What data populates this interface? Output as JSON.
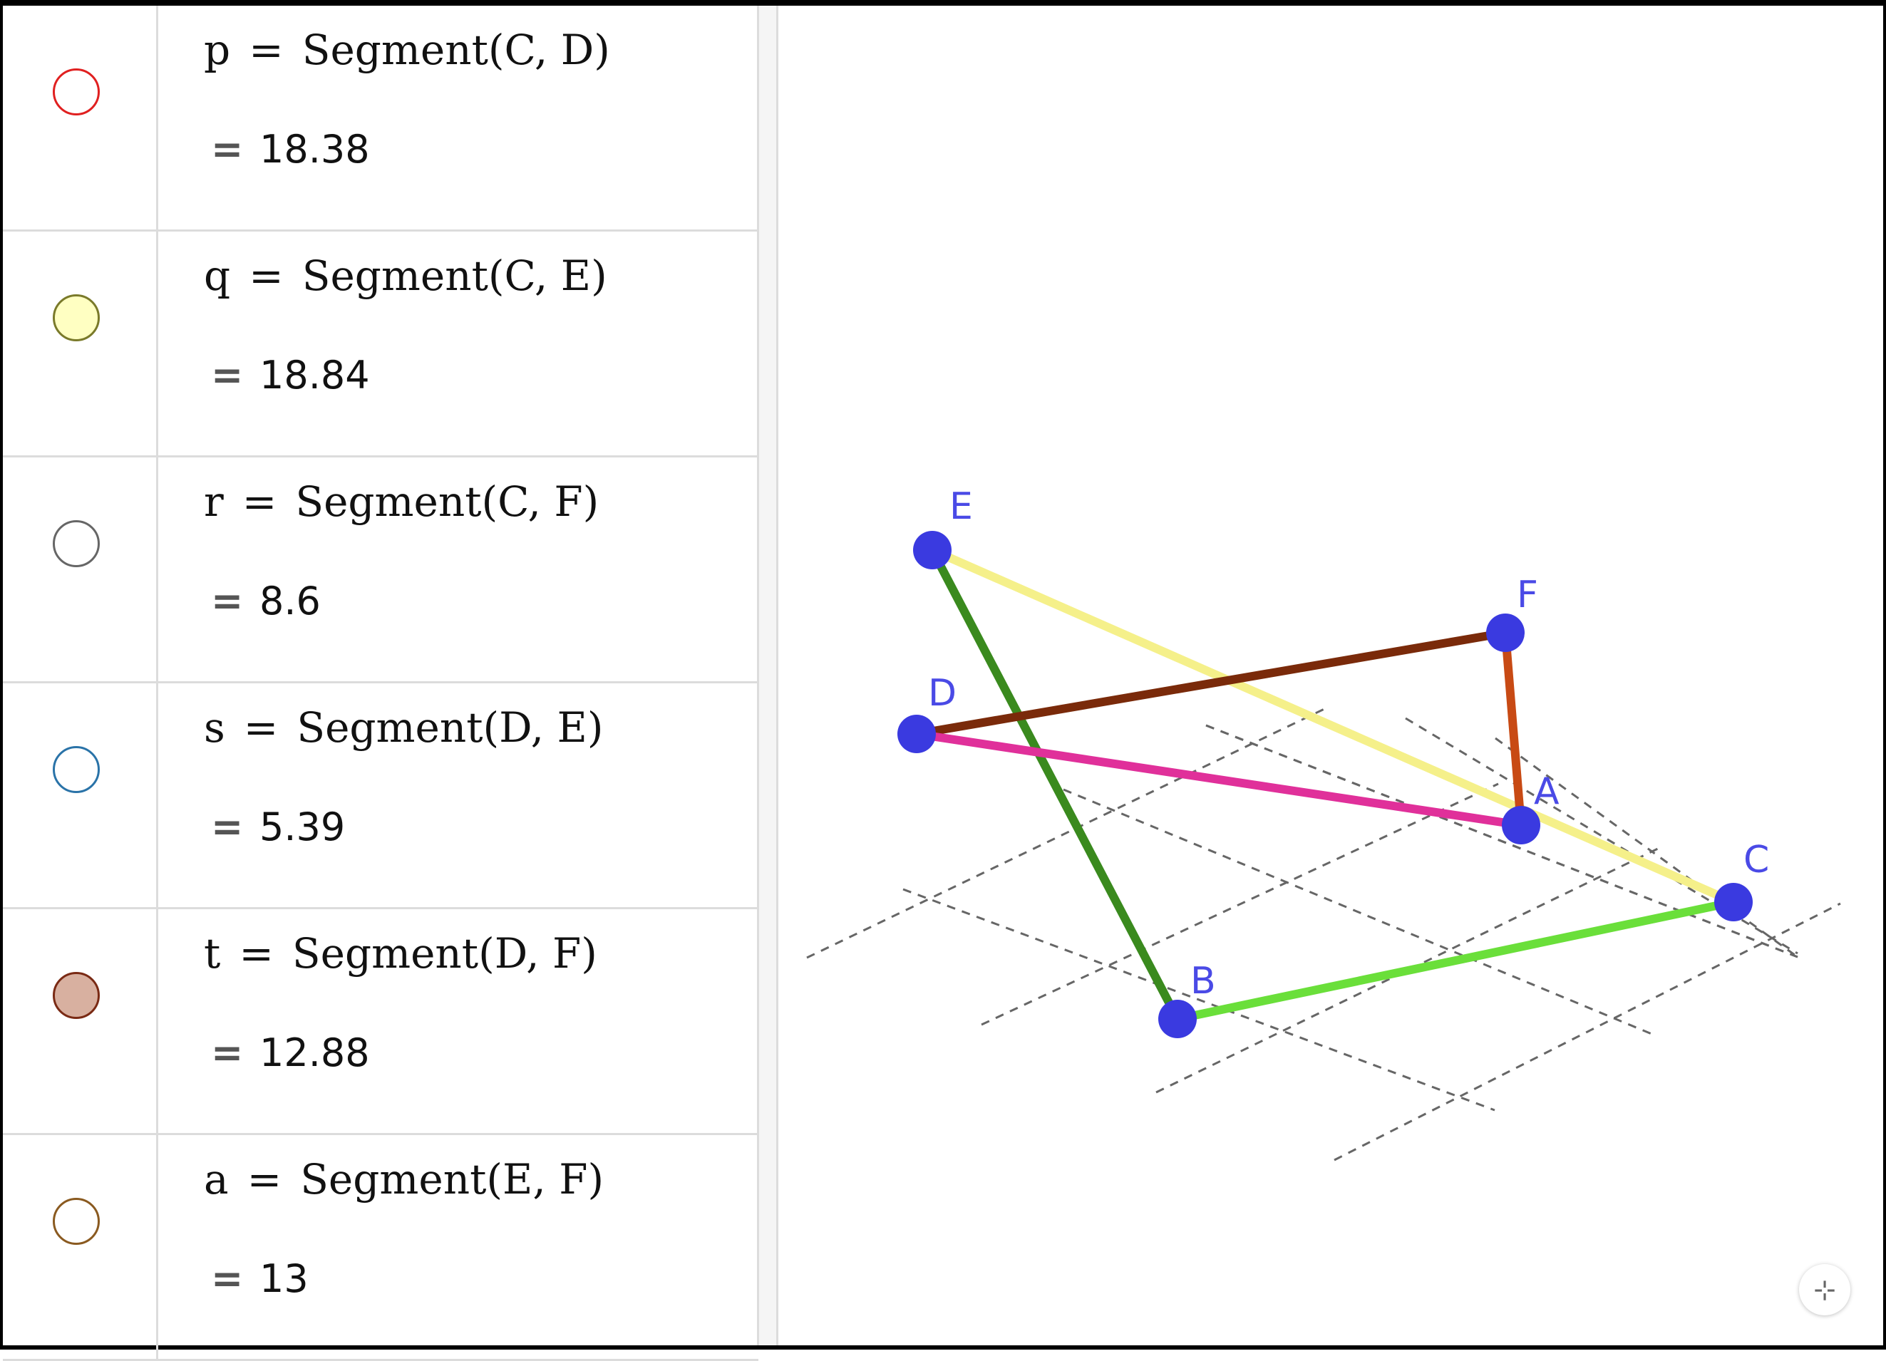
{
  "algebra": {
    "rows": [
      {
        "name": "p",
        "definition": "Segment(C, D)",
        "value": "18.38",
        "marble_color": "#e02020",
        "marble_fill": "#ffffff"
      },
      {
        "name": "q",
        "definition": "Segment(C, E)",
        "value": "18.84",
        "marble_color": "#7a7a2a",
        "marble_fill": "#ffffc2"
      },
      {
        "name": "r",
        "definition": "Segment(C, F)",
        "value": "8.6",
        "marble_color": "#666666",
        "marble_fill": "#ffffff"
      },
      {
        "name": "s",
        "definition": "Segment(D, E)",
        "value": "5.39",
        "marble_color": "#2a73a8",
        "marble_fill": "#ffffff"
      },
      {
        "name": "t",
        "definition": "Segment(D, F)",
        "value": "12.88",
        "marble_color": "#7a2a14",
        "marble_fill": "#d8b0a0"
      },
      {
        "name": "a",
        "definition": "Segment(E, F)",
        "value": "13",
        "marble_color": "#8a5a20",
        "marble_fill": "#ffffff"
      }
    ],
    "equals_sign": "=",
    "value_prefix": "="
  },
  "graphics": {
    "points": [
      {
        "label": "A"
      },
      {
        "label": "B"
      },
      {
        "label": "C"
      },
      {
        "label": "D"
      },
      {
        "label": "E"
      },
      {
        "label": "F"
      }
    ],
    "point_color": "#3a3ae0",
    "label_color": "#4a4ae6",
    "segment_colors": {
      "EB": "#3a8a1e",
      "EC": "#f5f08a",
      "DF": "#7a2a0a",
      "DA": "#e0309a",
      "FA": "#c84a14",
      "BC": "#6adf3a"
    },
    "zoom_button_icon": "collapse-icon"
  }
}
